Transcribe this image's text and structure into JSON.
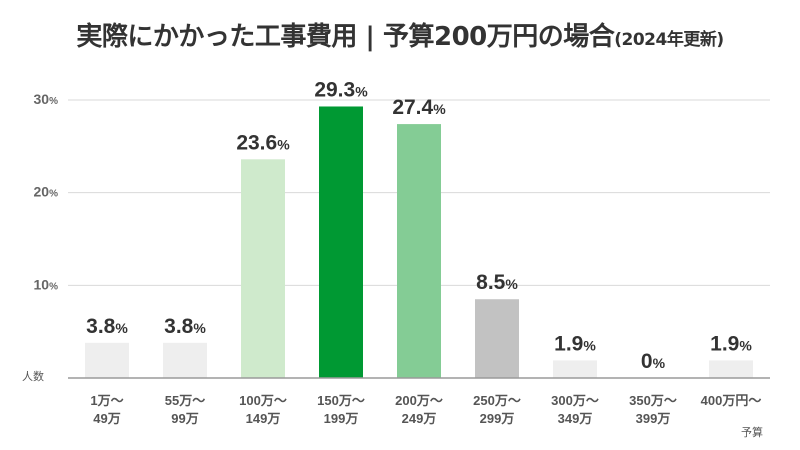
{
  "chart_data": {
    "type": "bar",
    "title": "実際にかかった工事費用 | 予算200万円の場合",
    "subtitle": "(2024年更新)",
    "ylabel": "人数",
    "xlabel": "予算",
    "ylim": [
      0,
      30
    ],
    "yticks": [
      {
        "value": 10,
        "label": "10",
        "unit": "%"
      },
      {
        "value": 20,
        "label": "20",
        "unit": "%"
      },
      {
        "value": 30,
        "label": "30",
        "unit": "%"
      }
    ],
    "grid": true,
    "categories": [
      {
        "line1": "1万～",
        "line2": "49万"
      },
      {
        "line1": "55万～",
        "line2": "99万"
      },
      {
        "line1": "100万～",
        "line2": "149万"
      },
      {
        "line1": "150万～",
        "line2": "199万"
      },
      {
        "line1": "200万～",
        "line2": "249万"
      },
      {
        "line1": "250万～",
        "line2": "299万"
      },
      {
        "line1": "300万～",
        "line2": "349万"
      },
      {
        "line1": "350万～",
        "line2": "399万"
      },
      {
        "line1": "400万円～",
        "line2": ""
      }
    ],
    "values": [
      3.8,
      3.8,
      23.6,
      29.3,
      27.4,
      8.5,
      1.9,
      0,
      1.9
    ],
    "value_labels": [
      "3.8",
      "3.8",
      "23.6",
      "29.3",
      "27.4",
      "8.5",
      "1.9",
      "0",
      "1.9"
    ],
    "value_unit": "%",
    "bar_colors": [
      "#eeeeee",
      "#eeeeee",
      "#cfeacc",
      "#009933",
      "#84cc95",
      "#c2c2c2",
      "#eeeeee",
      "#eeeeee",
      "#eeeeee"
    ]
  }
}
